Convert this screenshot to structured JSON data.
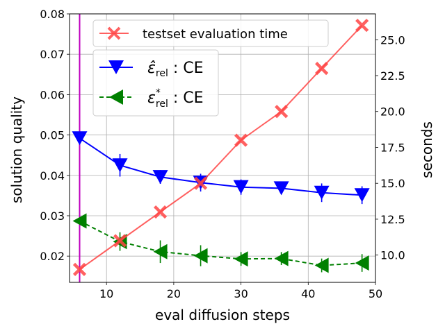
{
  "chart_data": {
    "type": "line",
    "x": [
      6,
      12,
      18,
      24,
      30,
      36,
      42,
      48
    ],
    "xlabel": "eval diffusion steps",
    "ylabel_left": "solution quality",
    "ylabel_right": "seconds",
    "xlim": [
      4.5,
      50
    ],
    "ylim_left": [
      0.0135,
      0.08
    ],
    "ylim_right": [
      8.1,
      26.8
    ],
    "x_ticks": [
      10,
      20,
      30,
      40,
      50
    ],
    "y_left_ticks": [
      0.02,
      0.03,
      0.04,
      0.05,
      0.06,
      0.07,
      0.08
    ],
    "y_left_tick_labels": [
      "0.02",
      "0.03",
      "0.04",
      "0.05",
      "0.06",
      "0.07",
      "0.08"
    ],
    "y_right_ticks": [
      10,
      12.5,
      15,
      17.5,
      20,
      22.5,
      25
    ],
    "y_right_tick_labels": [
      "10.0",
      "12.5",
      "15.0",
      "17.5",
      "20.0",
      "22.5",
      "25.0"
    ],
    "grid": true,
    "vertical_line_x": 6,
    "vertical_line_color": "#bf00bf",
    "series": [
      {
        "name": "testset evaluation time",
        "axis": "right",
        "color": "#ff4444",
        "marker": "x",
        "linestyle": "solid",
        "values": [
          9.0,
          11.0,
          13.0,
          15.0,
          18.0,
          20.0,
          23.0,
          26.0
        ]
      },
      {
        "name": "ε̂_rel : CE",
        "label_main": "ε̂",
        "label_sub": "rel",
        "label_tail": " : CE",
        "axis": "left",
        "color": "#0000ff",
        "marker": "triangle-down",
        "linestyle": "solid",
        "values": [
          0.0492,
          0.0425,
          0.0396,
          0.0382,
          0.0371,
          0.0368,
          0.0357,
          0.0351
        ],
        "errors": [
          0.0008,
          0.0028,
          0.0017,
          0.0022,
          0.0019,
          0.0014,
          0.0023,
          0.0022
        ]
      },
      {
        "name": "ε*_rel : CE",
        "label_main": "ε",
        "label_sup": "*",
        "label_sub": "rel",
        "label_tail": " : CE",
        "axis": "left",
        "color": "#008000",
        "marker": "triangle-left",
        "linestyle": "dashed",
        "values": [
          0.0287,
          0.0236,
          0.0211,
          0.0201,
          0.0193,
          0.0194,
          0.0177,
          0.0183
        ],
        "errors": [
          0.0008,
          0.0023,
          0.0028,
          0.0026,
          0.0017,
          0.0016,
          0.0017,
          0.0022
        ]
      }
    ]
  }
}
